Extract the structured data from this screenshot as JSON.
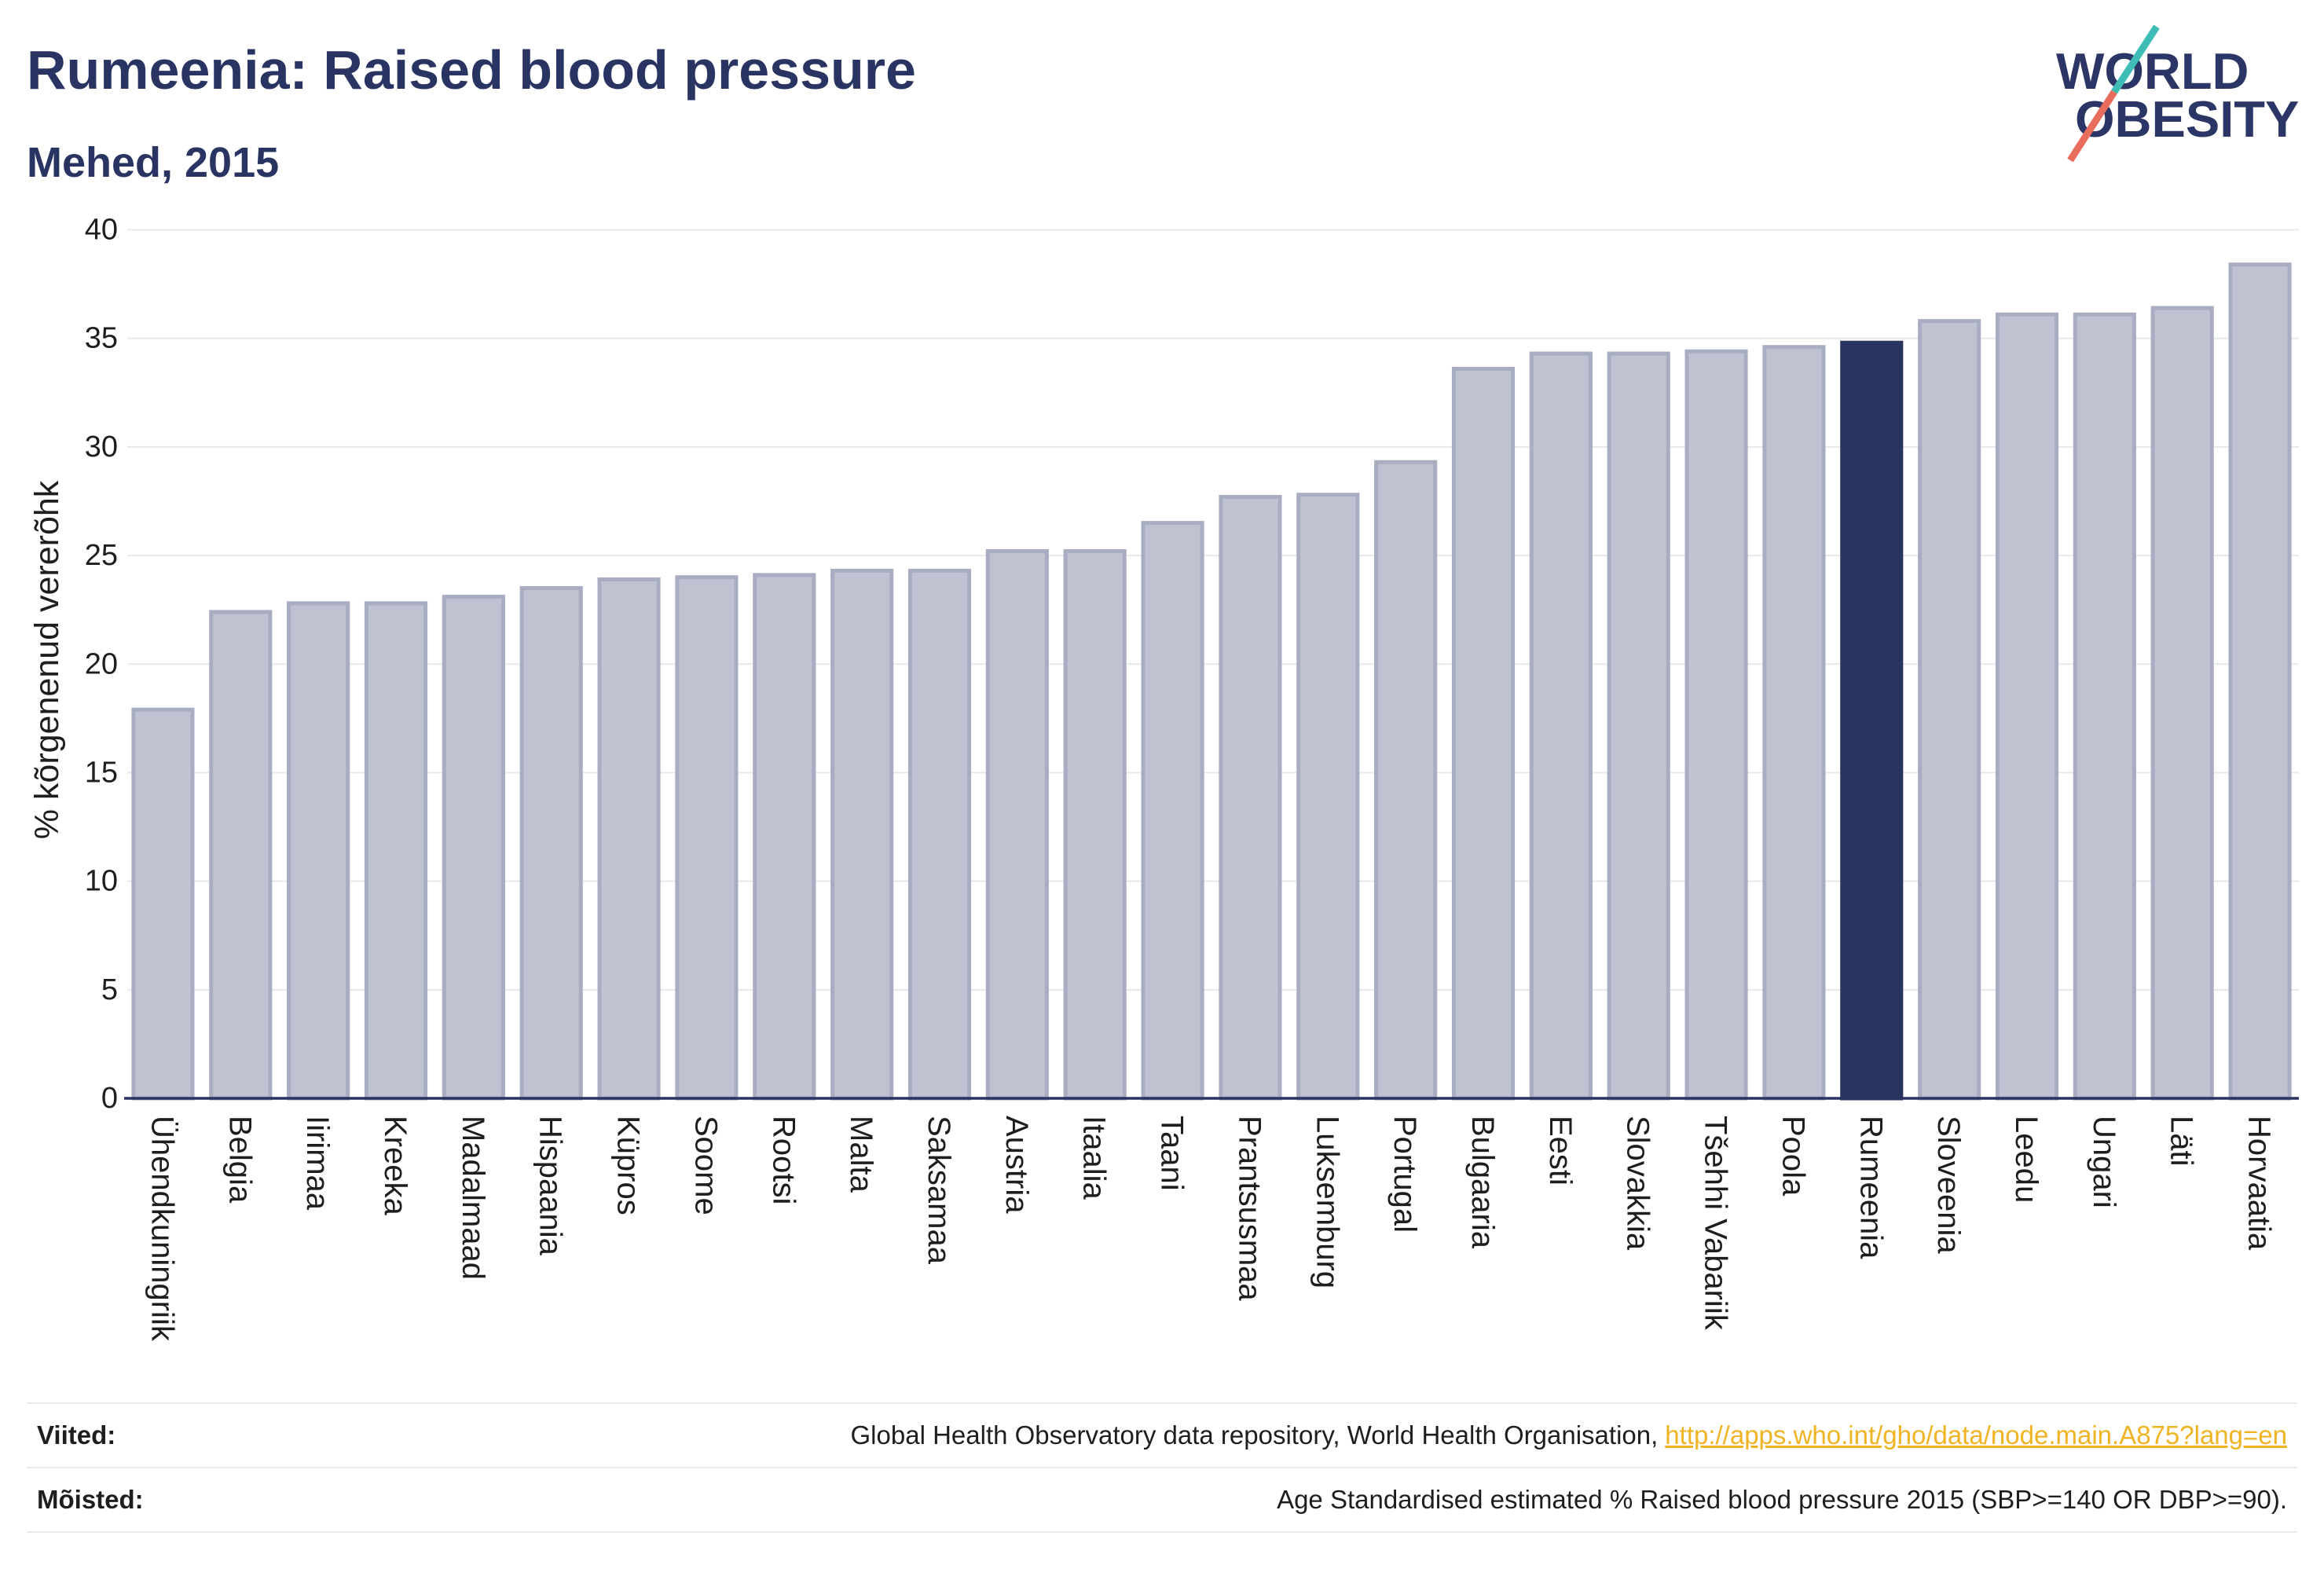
{
  "chart_data": {
    "type": "bar",
    "title": "Rumeenia: Raised blood pressure",
    "subtitle": "Mehed, 2015",
    "ylabel": "% kõrgenenud vererõhk",
    "categories": [
      "Ühendkuningriik",
      "Belgia",
      "Iirimaa",
      "Kreeka",
      "Madalmaad",
      "Hispaania",
      "Küpros",
      "Soome",
      "Rootsi",
      "Malta",
      "Saksamaa",
      "Austria",
      "Itaalia",
      "Taani",
      "Prantsusmaa",
      "Luksemburg",
      "Portugal",
      "Bulgaaria",
      "Eesti",
      "Slovakkia",
      "Tšehhi Vabariik",
      "Poola",
      "Rumeenia",
      "Sloveenia",
      "Leedu",
      "Ungari",
      "Läti",
      "Horvaatia"
    ],
    "values": [
      17.9,
      22.4,
      22.8,
      22.8,
      23.1,
      23.5,
      23.9,
      24.0,
      24.1,
      24.3,
      24.3,
      25.2,
      25.2,
      26.5,
      27.7,
      27.8,
      29.3,
      33.6,
      34.3,
      34.3,
      34.4,
      34.6,
      34.8,
      35.8,
      36.1,
      36.1,
      36.4,
      38.4
    ],
    "ylim": [
      0,
      40
    ],
    "yticks": [
      0,
      5,
      10,
      15,
      20,
      25,
      30,
      35,
      40
    ],
    "highlight": "Rumeenia",
    "grid": true,
    "colors": {
      "bar": "#bfc2d0",
      "bar_border": "#a9adc2",
      "highlight": "#29355f",
      "grid": "#e6e8ef",
      "axis": "#2a3463"
    }
  },
  "logo": {
    "line1": "WORLD",
    "line2": "OBESITY",
    "colors": {
      "text": "#2b3566",
      "slash_top": "#3dbdb5",
      "slash_bottom": "#e86d5c"
    }
  },
  "footer": {
    "sources_label": "Viited:",
    "sources_text": "Global Health Observatory data repository, World Health Organisation,",
    "sources_link": "http://apps.who.int/gho/data/node.main.A875?lang=en",
    "definitions_label": "Mõisted:",
    "definitions_text": "Age Standardised estimated % Raised blood pressure 2015 (SBP>=140 OR DBP>=90)."
  }
}
